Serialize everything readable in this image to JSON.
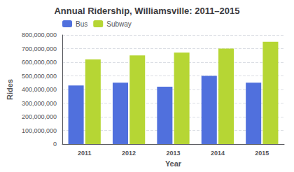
{
  "chart_data": {
    "type": "bar",
    "title": "Annual Ridership, Williamsville: 2011–2015",
    "x_label": "Year",
    "y_label": "Rides",
    "categories": [
      "2011",
      "2012",
      "2013",
      "2014",
      "2015"
    ],
    "series": [
      {
        "name": "Bus",
        "values": [
          430000000,
          450000000,
          420000000,
          500000000,
          450000000
        ]
      },
      {
        "name": "Subway",
        "values": [
          620000000,
          650000000,
          670000000,
          700000000,
          750000000
        ]
      }
    ],
    "ylim": [
      0,
      800000000
    ],
    "yticks": [
      0,
      {
        "value": 100000000,
        "label": "100,000,000"
      },
      {
        "value": 200000000,
        "label": "200,000,000"
      },
      {
        "value": 300000000,
        "label": "300,000,000"
      },
      {
        "value": 400000000,
        "label": "400,000,000"
      },
      {
        "value": 500000000,
        "label": "500,000,000"
      },
      {
        "value": 600000000,
        "label": "600,000,000"
      },
      {
        "value": 700000000,
        "label": "700,000,000"
      },
      {
        "value": 800000000,
        "label": "800,000,000"
      }
    ],
    "grid": true,
    "legend": "upper left"
  }
}
